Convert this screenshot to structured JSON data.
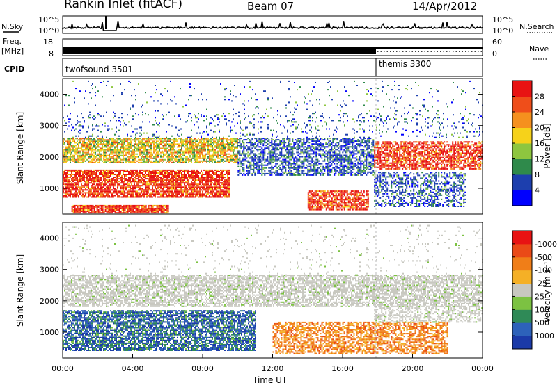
{
  "header": {
    "station": "Rankin Inlet (fitACF)",
    "beam": "Beam 07",
    "date": "14/Apr/2012"
  },
  "top_panels": {
    "nsky_label": "N.Sky",
    "nsearch_label": "N.Search",
    "noise_ticks": [
      "10^5",
      "10^0"
    ],
    "freq_label": "Freq.",
    "freq_unit": "[MHz]",
    "freq_ticks": [
      "18",
      "8"
    ],
    "nave_ticks": [
      "60",
      "0"
    ],
    "nave_label": "Nave",
    "cpid_label": "CPID",
    "cpid_1": "twofsound 3501",
    "cpid_2": "themis 3300"
  },
  "chart_data": [
    {
      "type": "heatmap",
      "title": "",
      "ylabel": "Slant Range [km]",
      "xlabel": "",
      "ylim": [
        180,
        4500
      ],
      "y_ticks": [
        1000,
        2000,
        3000,
        4000
      ],
      "xlim_hours": [
        0,
        24
      ],
      "colorbar": {
        "label": "Power [dB]",
        "ticks": [
          "4",
          "8",
          "12",
          "16",
          "20",
          "24",
          "28"
        ],
        "colors": [
          "#0000ff",
          "#1d3fae",
          "#2f8a4b",
          "#8ec63f",
          "#f6d21a",
          "#f5901e",
          "#ef4e1a",
          "#e81313"
        ]
      }
    },
    {
      "type": "heatmap",
      "title": "",
      "ylabel": "Slant Range [km]",
      "xlabel": "Time UT",
      "ylim": [
        180,
        4500
      ],
      "y_ticks": [
        1000,
        2000,
        3000,
        4000
      ],
      "x_ticks": [
        "00:00",
        "04:00",
        "08:00",
        "12:00",
        "16:00",
        "20:00",
        "00:00"
      ],
      "colorbar": {
        "label": "Velocity [m s⁻¹]",
        "ticks": [
          "1000",
          "500",
          "100",
          "25",
          "-25",
          "-100",
          "-500",
          "-1000"
        ],
        "colors": [
          "#1b3aa8",
          "#2d62ba",
          "#2f8a57",
          "#7cc242",
          "#c8c8c0",
          "#f5b026",
          "#f07e18",
          "#ea4a17",
          "#e81313"
        ]
      }
    }
  ]
}
